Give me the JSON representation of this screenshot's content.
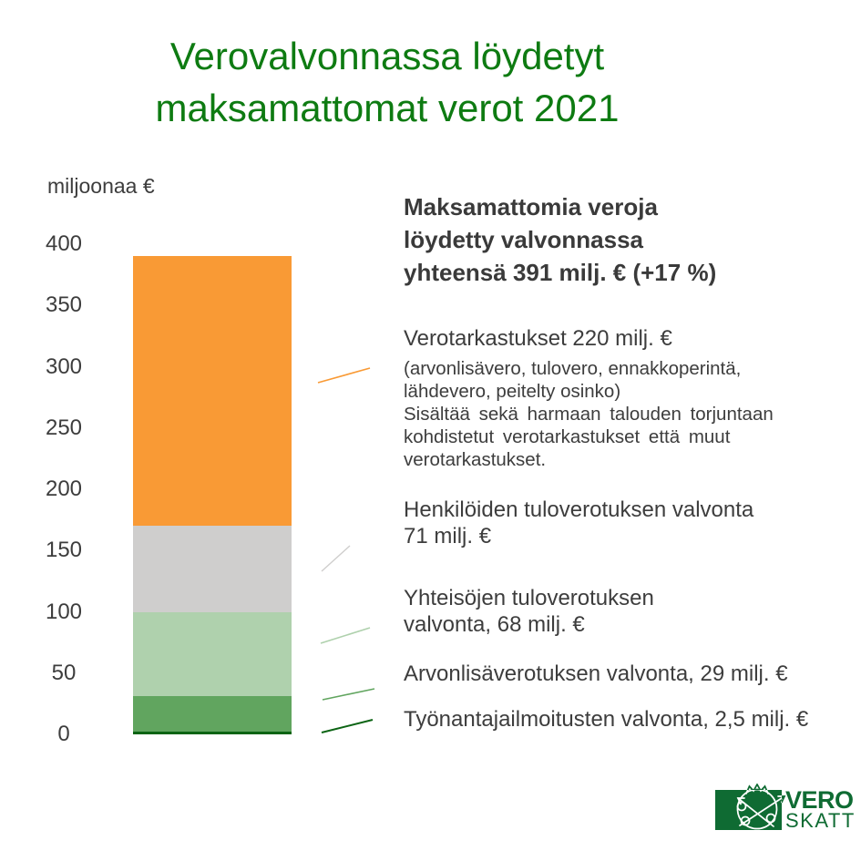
{
  "title": {
    "lines": [
      "Verovalvonnassa löydetyt",
      "maksamattomat verot 2021"
    ],
    "color": "#0e7b12"
  },
  "chart_data": {
    "type": "bar",
    "stacked": true,
    "title": "Verovalvonnassa löydetyt maksamattomat verot 2021",
    "ylabel": "miljoonaa €",
    "ylim": [
      0,
      400
    ],
    "y_ticks": [
      0,
      50,
      100,
      150,
      200,
      250,
      300,
      350,
      400
    ],
    "grid": false,
    "legend_position": "none",
    "total_value": 391,
    "total_label": "yhteensä 391 milj. € (+17 %)",
    "series": [
      {
        "name": "Verotarkastukset",
        "value": 220,
        "color": "#f99a35"
      },
      {
        "name": "Henkilöiden tuloverotuksen valvonta",
        "value": 71,
        "color": "#cfcecd"
      },
      {
        "name": "Yhteisöjen tuloverotuksen valvonta",
        "value": 68,
        "color": "#afd1ad"
      },
      {
        "name": "Arvonlisäverotuksen valvonta",
        "value": 29,
        "color": "#61a55f"
      },
      {
        "name": "Työnantajailmoitusten valvonta",
        "value": 2.5,
        "color": "#0c6414"
      }
    ]
  },
  "annotations": {
    "summary": {
      "lines": [
        "Maksamattomia veroja",
        "löydetty valvonnassa",
        "yhteensä 391 milj. € (+17 %)"
      ]
    },
    "verotarkastukset": {
      "headline": "Verotarkastukset 220 milj. €",
      "details": [
        "(arvonlisävero, tulovero, ennakkoperintä,",
        "lähdevero, peitelty osinko)",
        "Sisältää sekä harmaan talouden torjuntaan",
        "kohdistetut verotarkastukset että muut",
        "verotarkastukset."
      ]
    },
    "henkiloiden": {
      "lines": [
        "Henkilöiden tuloverotuksen valvonta",
        "71 milj. €"
      ]
    },
    "yhteisojen": {
      "lines": [
        "Yhteisöjen tuloverotuksen",
        "valvonta, 68 milj. €"
      ]
    },
    "arvonlisa": {
      "lines": [
        "Arvonlisäverotuksen valvonta, 29 milj. €"
      ]
    },
    "tyonantaja": {
      "lines": [
        "Työnantajailmoitusten valvonta, 2,5 milj. €"
      ]
    }
  },
  "logo": {
    "primary": "VERO",
    "secondary": "SKATT",
    "color": "#0f6b33"
  }
}
